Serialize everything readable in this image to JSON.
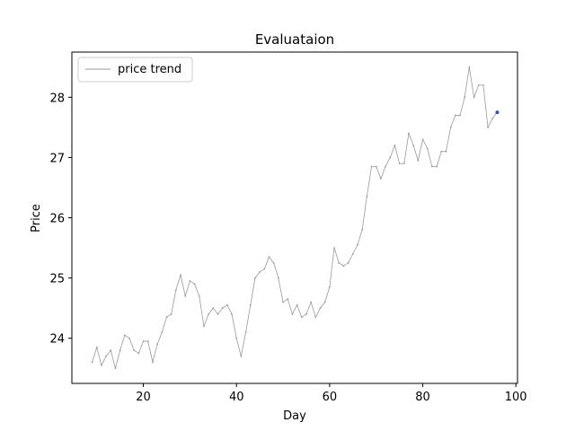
{
  "chart_data": {
    "type": "line",
    "title": "Evaluataion",
    "xlabel": "Day",
    "ylabel": "Price",
    "xlim": [
      4.65,
      100.35
    ],
    "ylim": [
      23.25,
      28.75
    ],
    "xticks": [
      20,
      40,
      60,
      80,
      100
    ],
    "yticks": [
      24,
      25,
      26,
      27,
      28
    ],
    "grid": false,
    "legend": {
      "position": "top-left",
      "entries": [
        "price trend"
      ]
    },
    "series": [
      {
        "name": "price trend",
        "color": "#999999",
        "x": [
          9,
          10,
          11,
          12,
          13,
          14,
          15,
          16,
          17,
          18,
          19,
          20,
          21,
          22,
          23,
          24,
          25,
          26,
          27,
          28,
          29,
          30,
          31,
          32,
          33,
          34,
          35,
          36,
          37,
          38,
          39,
          40,
          41,
          42,
          43,
          44,
          45,
          46,
          47,
          48,
          49,
          50,
          51,
          52,
          53,
          54,
          55,
          56,
          57,
          58,
          59,
          60,
          61,
          62,
          63,
          64,
          65,
          66,
          67,
          68,
          69,
          70,
          71,
          72,
          73,
          74,
          75,
          76,
          77,
          78,
          79,
          80,
          81,
          82,
          83,
          84,
          85,
          86,
          87,
          88,
          89,
          90,
          91,
          92,
          93,
          94,
          95,
          96
        ],
        "y": [
          23.6,
          23.85,
          23.55,
          23.7,
          23.8,
          23.5,
          23.8,
          24.05,
          24.0,
          23.8,
          23.75,
          23.95,
          23.95,
          23.6,
          23.9,
          24.1,
          24.35,
          24.4,
          24.8,
          25.05,
          24.7,
          24.95,
          24.9,
          24.7,
          24.2,
          24.4,
          24.5,
          24.4,
          24.5,
          24.55,
          24.4,
          24.0,
          23.7,
          24.1,
          24.55,
          25.0,
          25.1,
          25.15,
          25.35,
          25.25,
          25.0,
          24.6,
          24.65,
          24.4,
          24.55,
          24.35,
          24.4,
          24.6,
          24.35,
          24.5,
          24.6,
          24.85,
          25.5,
          25.25,
          25.2,
          25.25,
          25.4,
          25.55,
          25.8,
          26.35,
          26.85,
          26.85,
          26.65,
          26.85,
          27.0,
          27.2,
          26.9,
          26.9,
          27.4,
          27.2,
          26.95,
          27.3,
          27.15,
          26.85,
          26.85,
          27.1,
          27.1,
          27.5,
          27.7,
          27.7,
          28.0,
          28.5,
          28.0,
          28.2,
          28.2,
          27.5,
          27.65,
          27.75
        ]
      }
    ],
    "highlight_point": {
      "x": 96,
      "y": 27.75,
      "color": "#3355bb"
    }
  }
}
